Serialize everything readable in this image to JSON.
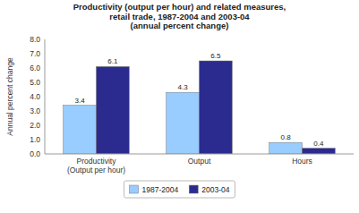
{
  "chart_data": {
    "type": "bar",
    "title": "Productivity (output per hour) and related measures,\nretail trade, 1987-2004 and 2003-04\n(annual percent change)",
    "categories": [
      "Productivity\n(Output per hour)",
      "Output",
      "Hours"
    ],
    "series": [
      {
        "name": "1987-2004",
        "color": "#99ccff",
        "values": [
          3.4,
          4.3,
          0.8
        ]
      },
      {
        "name": "2003-04",
        "color": "#2b2b8f",
        "values": [
          6.1,
          6.5,
          0.4
        ]
      }
    ],
    "ylabel": "Annual percent change",
    "ylim": [
      0,
      8.0
    ],
    "yticks": [
      {
        "value": 0.0,
        "label": "0.0"
      },
      {
        "value": 1.0,
        "label": "1.0"
      },
      {
        "value": 2.0,
        "label": "2.0"
      },
      {
        "value": 3.0,
        "label": "3.0"
      },
      {
        "value": 4.0,
        "label": "4.0"
      },
      {
        "value": 5.0,
        "label": "5.0"
      },
      {
        "value": 6.0,
        "label": "6.0"
      },
      {
        "value": 7.0,
        "label": "7.0"
      },
      {
        "value": 8.0,
        "label": "8.0"
      }
    ],
    "data_labels": true,
    "grid": false,
    "legend": "bottom"
  }
}
